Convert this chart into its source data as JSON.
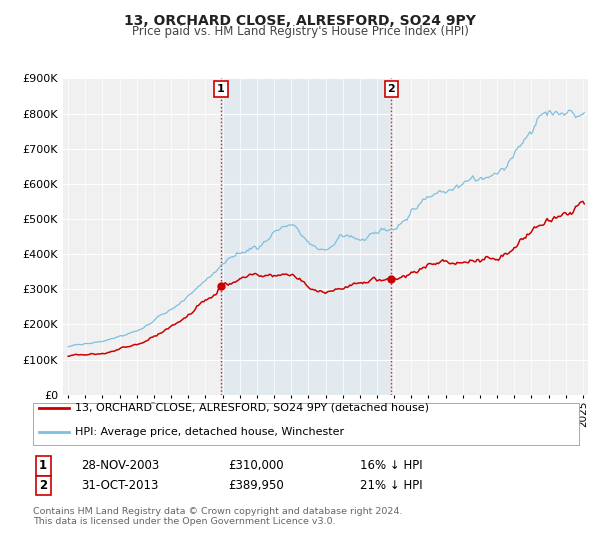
{
  "title": "13, ORCHARD CLOSE, ALRESFORD, SO24 9PY",
  "subtitle": "Price paid vs. HM Land Registry's House Price Index (HPI)",
  "ylim": [
    0,
    900000
  ],
  "xlim_start": 1994.7,
  "xlim_end": 2025.3,
  "ytick_labels": [
    "£0",
    "£100K",
    "£200K",
    "£300K",
    "£400K",
    "£500K",
    "£600K",
    "£700K",
    "£800K",
    "£900K"
  ],
  "ytick_values": [
    0,
    100000,
    200000,
    300000,
    400000,
    500000,
    600000,
    700000,
    800000,
    900000
  ],
  "xtick_years": [
    1995,
    1996,
    1997,
    1998,
    1999,
    2000,
    2001,
    2002,
    2003,
    2004,
    2005,
    2006,
    2007,
    2008,
    2009,
    2010,
    2011,
    2012,
    2013,
    2014,
    2015,
    2016,
    2017,
    2018,
    2019,
    2020,
    2021,
    2022,
    2023,
    2024,
    2025
  ],
  "hpi_color": "#7fbfdf",
  "price_color": "#cc0000",
  "sale1_date": 2003.91,
  "sale1_price": 310000,
  "sale1_label": "1",
  "sale1_date_str": "28-NOV-2003",
  "sale1_price_str": "£310,000",
  "sale1_pct": "16% ↓ HPI",
  "sale2_date": 2013.83,
  "sale2_price": 389950,
  "sale2_label": "2",
  "sale2_date_str": "31-OCT-2013",
  "sale2_price_str": "£389,950",
  "sale2_pct": "21% ↓ HPI",
  "shade_start": 2003.91,
  "shade_end": 2013.83,
  "legend_label1": "13, ORCHARD CLOSE, ALRESFORD, SO24 9PY (detached house)",
  "legend_label2": "HPI: Average price, detached house, Winchester",
  "footer": "Contains HM Land Registry data © Crown copyright and database right 2024.\nThis data is licensed under the Open Government Licence v3.0.",
  "background_color": "#ffffff",
  "plot_bg_color": "#f0f0f0"
}
